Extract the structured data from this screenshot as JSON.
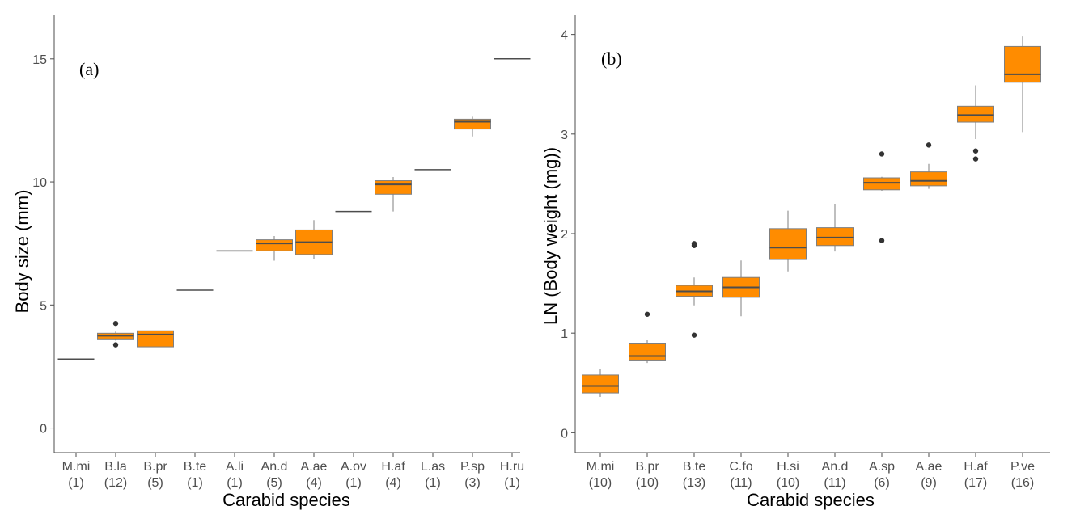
{
  "chart_data": [
    {
      "type": "box",
      "panel_label": "(a)",
      "xlabel": "Carabid species",
      "ylabel": "Body size (mm)",
      "ylim": [
        -1,
        16.8
      ],
      "yticks": [
        0,
        5,
        10,
        15
      ],
      "box_color": "#ff8c00",
      "grid": false,
      "categories": [
        {
          "name": "M.mi",
          "n": "(1)",
          "min": 2.8,
          "q1": 2.8,
          "median": 2.8,
          "q3": 2.8,
          "max": 2.8,
          "outliers": []
        },
        {
          "name": "B.la",
          "n": "(12)",
          "min": 3.55,
          "q1": 3.62,
          "median": 3.75,
          "q3": 3.85,
          "max": 3.92,
          "outliers": [
            4.25,
            3.38
          ]
        },
        {
          "name": "B.pr",
          "n": "(5)",
          "min": 3.3,
          "q1": 3.3,
          "median": 3.8,
          "q3": 3.95,
          "max": 3.95,
          "outliers": []
        },
        {
          "name": "B.te",
          "n": "(1)",
          "min": 5.6,
          "q1": 5.6,
          "median": 5.6,
          "q3": 5.6,
          "max": 5.6,
          "outliers": []
        },
        {
          "name": "A.li",
          "n": "(1)",
          "min": 7.2,
          "q1": 7.2,
          "median": 7.2,
          "q3": 7.2,
          "max": 7.2,
          "outliers": []
        },
        {
          "name": "An.d",
          "n": "(5)",
          "min": 6.8,
          "q1": 7.2,
          "median": 7.5,
          "q3": 7.65,
          "max": 7.8,
          "outliers": []
        },
        {
          "name": "A.ae",
          "n": "(4)",
          "min": 6.85,
          "q1": 7.05,
          "median": 7.55,
          "q3": 8.05,
          "max": 8.45,
          "outliers": []
        },
        {
          "name": "A.ov",
          "n": "(1)",
          "min": 8.8,
          "q1": 8.8,
          "median": 8.8,
          "q3": 8.8,
          "max": 8.8,
          "outliers": []
        },
        {
          "name": "H.af",
          "n": "(4)",
          "min": 8.8,
          "q1": 9.5,
          "median": 9.9,
          "q3": 10.05,
          "max": 10.2,
          "outliers": []
        },
        {
          "name": "L.as",
          "n": "(1)",
          "min": 10.5,
          "q1": 10.5,
          "median": 10.5,
          "q3": 10.5,
          "max": 10.5,
          "outliers": []
        },
        {
          "name": "P.sp",
          "n": "(3)",
          "min": 11.85,
          "q1": 12.15,
          "median": 12.45,
          "q3": 12.55,
          "max": 12.65,
          "outliers": []
        },
        {
          "name": "H.ru",
          "n": "(1)",
          "min": 15.0,
          "q1": 15.0,
          "median": 15.0,
          "q3": 15.0,
          "max": 15.0,
          "outliers": []
        }
      ]
    },
    {
      "type": "box",
      "panel_label": "(b)",
      "xlabel": "Carabid species",
      "ylabel": "LN (Body weight (mg))",
      "ylim": [
        -0.2,
        4.2
      ],
      "yticks": [
        0,
        1,
        2,
        3,
        4
      ],
      "box_color": "#ff8c00",
      "grid": false,
      "categories": [
        {
          "name": "M.mi",
          "n": "(10)",
          "min": 0.36,
          "q1": 0.4,
          "median": 0.47,
          "q3": 0.58,
          "max": 0.64,
          "outliers": []
        },
        {
          "name": "B.pr",
          "n": "(10)",
          "min": 0.7,
          "q1": 0.73,
          "median": 0.77,
          "q3": 0.9,
          "max": 0.93,
          "outliers": [
            1.19
          ]
        },
        {
          "name": "B.te",
          "n": "(13)",
          "min": 1.28,
          "q1": 1.37,
          "median": 1.42,
          "q3": 1.48,
          "max": 1.56,
          "outliers": [
            1.88,
            1.9,
            0.98
          ]
        },
        {
          "name": "C.fo",
          "n": "(11)",
          "min": 1.17,
          "q1": 1.36,
          "median": 1.46,
          "q3": 1.56,
          "max": 1.73,
          "outliers": []
        },
        {
          "name": "H.si",
          "n": "(10)",
          "min": 1.62,
          "q1": 1.74,
          "median": 1.86,
          "q3": 2.05,
          "max": 2.23,
          "outliers": []
        },
        {
          "name": "An.d",
          "n": "(11)",
          "min": 1.82,
          "q1": 1.88,
          "median": 1.96,
          "q3": 2.06,
          "max": 2.3,
          "outliers": []
        },
        {
          "name": "A.sp",
          "n": "(6)",
          "min": 2.43,
          "q1": 2.44,
          "median": 2.51,
          "q3": 2.56,
          "max": 2.57,
          "outliers": [
            2.8,
            1.93
          ]
        },
        {
          "name": "A.ae",
          "n": "(9)",
          "min": 2.45,
          "q1": 2.48,
          "median": 2.53,
          "q3": 2.62,
          "max": 2.7,
          "outliers": [
            2.89
          ]
        },
        {
          "name": "H.af",
          "n": "(17)",
          "min": 2.95,
          "q1": 3.12,
          "median": 3.19,
          "q3": 3.28,
          "max": 3.49,
          "outliers": [
            2.83,
            2.75
          ]
        },
        {
          "name": "P.ve",
          "n": "(16)",
          "min": 3.02,
          "q1": 3.52,
          "median": 3.6,
          "q3": 3.88,
          "max": 3.98,
          "outliers": []
        }
      ]
    }
  ]
}
